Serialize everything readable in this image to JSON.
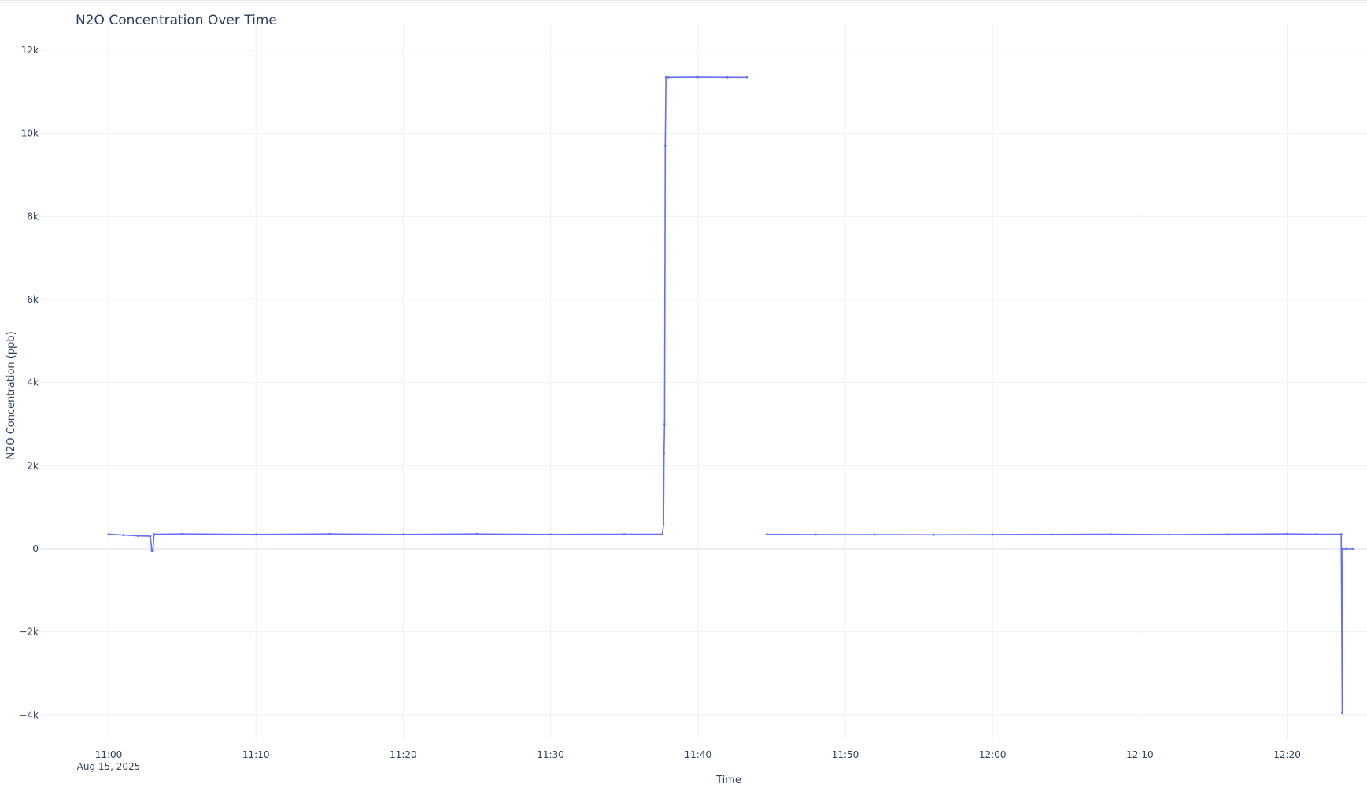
{
  "chart_data": {
    "type": "line",
    "title": "N2O Concentration Over Time",
    "xlabel": "Time",
    "ylabel": "N2O Concentration (ppb)",
    "x_ticks": [
      {
        "x": "11:00",
        "label": "11:00",
        "sublabel": "Aug 15, 2025"
      },
      {
        "x": "11:10",
        "label": "11:10"
      },
      {
        "x": "11:20",
        "label": "11:20"
      },
      {
        "x": "11:30",
        "label": "11:30"
      },
      {
        "x": "11:40",
        "label": "11:40"
      },
      {
        "x": "11:50",
        "label": "11:50"
      },
      {
        "x": "12:00",
        "label": "12:00"
      },
      {
        "x": "12:10",
        "label": "12:10"
      },
      {
        "x": "12:20",
        "label": "12:20"
      }
    ],
    "y_ticks": [
      {
        "value": -4000,
        "label": "−4k"
      },
      {
        "value": -2000,
        "label": "−2k"
      },
      {
        "value": 0,
        "label": "0"
      },
      {
        "value": 2000,
        "label": "2k"
      },
      {
        "value": 4000,
        "label": "4k"
      },
      {
        "value": 6000,
        "label": "6k"
      },
      {
        "value": 8000,
        "label": "8k"
      },
      {
        "value": 10000,
        "label": "10k"
      },
      {
        "value": 12000,
        "label": "12k"
      }
    ],
    "ylim": [
      -4700,
      12300
    ],
    "xlim": [
      "10:58",
      "12:25"
    ],
    "grid": true,
    "color": "#636efa",
    "series": [
      {
        "segments": [
          {
            "x": [
              "11:00:00",
              "11:01:00",
              "11:02:00",
              "11:02:50",
              "11:02:56",
              "11:03:00",
              "11:03:05",
              "11:05:00",
              "11:10:00",
              "11:15:00",
              "11:20:00",
              "11:25:00",
              "11:30:00",
              "11:35:00",
              "11:37:35",
              "11:37:40",
              "11:37:42",
              "11:37:44",
              "11:37:47",
              "11:37:50",
              "11:38:00",
              "11:40:00",
              "11:42:00",
              "11:43:20"
            ],
            "y": [
              350,
              330,
              310,
              300,
              -50,
              -50,
              350,
              355,
              345,
              355,
              345,
              355,
              345,
              350,
              350,
              600,
              2300,
              3000,
              9700,
              11350,
              11350,
              11355,
              11350,
              11350
            ]
          },
          {
            "x": [
              "11:44:40",
              "11:48:00",
              "11:52:00",
              "11:56:00",
              "12:00:00",
              "12:04:00",
              "12:08:00",
              "12:12:00",
              "12:16:00",
              "12:20:00",
              "12:22:00",
              "12:23:40",
              "12:23:44",
              "12:23:46",
              "12:24:00",
              "12:24:30"
            ],
            "y": [
              345,
              340,
              340,
              335,
              340,
              345,
              350,
              340,
              350,
              355,
              350,
              350,
              -3950,
              0,
              0,
              0
            ]
          }
        ]
      }
    ]
  }
}
